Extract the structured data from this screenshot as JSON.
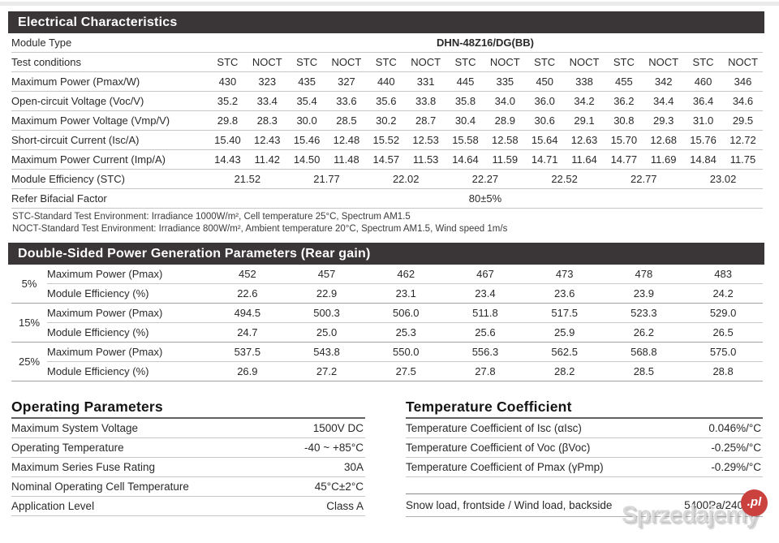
{
  "colors": {
    "header_band_bg": "#3a3536",
    "header_band_text": "#ffffff",
    "row_line": "#c6c6c6",
    "watermark_red": "#cb413e"
  },
  "electrical": {
    "title": "Electrical Characteristics",
    "module_type_label": "Module Type",
    "module_type_value": "DHN-48Z16/DG(BB)",
    "test_conditions_label": "Test conditions",
    "condition_pair": [
      "STC",
      "NOCT"
    ],
    "rows": [
      {
        "label": "Maximum Power (Pmax/W)",
        "values": [
          "430",
          "323",
          "435",
          "327",
          "440",
          "331",
          "445",
          "335",
          "450",
          "338",
          "455",
          "342",
          "460",
          "346"
        ]
      },
      {
        "label": "Open-circuit Voltage (Voc/V)",
        "values": [
          "35.2",
          "33.4",
          "35.4",
          "33.6",
          "35.6",
          "33.8",
          "35.8",
          "34.0",
          "36.0",
          "34.2",
          "36.2",
          "34.4",
          "36.4",
          "34.6"
        ]
      },
      {
        "label": "Maximum Power Voltage (Vmp/V)",
        "values": [
          "29.8",
          "28.3",
          "30.0",
          "28.5",
          "30.2",
          "28.7",
          "30.4",
          "28.9",
          "30.6",
          "29.1",
          "30.8",
          "29.3",
          "31.0",
          "29.5"
        ]
      },
      {
        "label": "Short-circuit Current (Isc/A)",
        "values": [
          "15.40",
          "12.43",
          "15.46",
          "12.48",
          "15.52",
          "12.53",
          "15.58",
          "12.58",
          "15.64",
          "12.63",
          "15.70",
          "12.68",
          "15.76",
          "12.72"
        ]
      },
      {
        "label": "Maximum Power Current (Imp/A)",
        "values": [
          "14.43",
          "11.42",
          "14.50",
          "11.48",
          "14.57",
          "11.53",
          "14.64",
          "11.59",
          "14.71",
          "11.64",
          "14.77",
          "11.69",
          "14.84",
          "11.75"
        ]
      }
    ],
    "efficiency_row": {
      "label": "Module Efficiency (STC)",
      "values": [
        "21.52",
        "21.77",
        "22.02",
        "22.27",
        "22.52",
        "22.77",
        "23.02"
      ]
    },
    "bifacial_row": {
      "label": "Refer Bifacial Factor",
      "value": "80±5%"
    },
    "footnotes": [
      "STC-Standard Test Environment: Irradiance 1000W/m², Cell temperature 25°C, Spectrum AM1.5",
      "NOCT-Standard Test Environment: Irradiance 800W/m², Ambient temperature 20°C, Spectrum AM1.5, Wind speed 1m/s"
    ]
  },
  "double_sided": {
    "title": "Double-Sided Power Generation Parameters (Rear gain)",
    "groups": [
      {
        "gain": "5%",
        "rows": [
          {
            "label": "Maximum Power (Pmax)",
            "values": [
              "452",
              "457",
              "462",
              "467",
              "473",
              "478",
              "483"
            ]
          },
          {
            "label": "Module Efficiency (%)",
            "values": [
              "22.6",
              "22.9",
              "23.1",
              "23.4",
              "23.6",
              "23.9",
              "24.2"
            ]
          }
        ]
      },
      {
        "gain": "15%",
        "rows": [
          {
            "label": "Maximum Power (Pmax)",
            "values": [
              "494.5",
              "500.3",
              "506.0",
              "511.8",
              "517.5",
              "523.3",
              "529.0"
            ]
          },
          {
            "label": "Module Efficiency (%)",
            "values": [
              "24.7",
              "25.0",
              "25.3",
              "25.6",
              "25.9",
              "26.2",
              "26.5"
            ]
          }
        ]
      },
      {
        "gain": "25%",
        "rows": [
          {
            "label": "Maximum Power (Pmax)",
            "values": [
              "537.5",
              "543.8",
              "550.0",
              "556.3",
              "562.5",
              "568.8",
              "575.0"
            ]
          },
          {
            "label": "Module Efficiency (%)",
            "values": [
              "26.9",
              "27.2",
              "27.5",
              "27.8",
              "28.2",
              "28.5",
              "28.8"
            ]
          }
        ]
      }
    ]
  },
  "operating": {
    "title": "Operating Parameters",
    "rows": [
      {
        "label": "Maximum System Voltage",
        "value": "1500V DC"
      },
      {
        "label": "Operating Temperature",
        "value": "-40 ~ +85°C"
      },
      {
        "label": "Maximum Series Fuse Rating",
        "value": "30A"
      },
      {
        "label": "Nominal Operating Cell Temperature",
        "value": "45°C±2°C"
      },
      {
        "label": "Application Level",
        "value": "Class A"
      }
    ]
  },
  "temperature": {
    "title": "Temperature Coefficient",
    "rows": [
      {
        "label": "Temperature Coefficient of Isc (αIsc)",
        "value": "0.046%/°C"
      },
      {
        "label": "Temperature Coefficient of Voc (βVoc)",
        "value": "-0.25%/°C"
      },
      {
        "label": "Temperature Coefficient of Pmax (γPmp)",
        "value": "-0.29%/°C"
      }
    ],
    "snow_row": {
      "label": "Snow load, frontside / Wind load, backside",
      "value": "5400Pa/2400Pa"
    }
  },
  "watermark": {
    "text": "Sprzedajemy",
    "badge": ".pl"
  }
}
